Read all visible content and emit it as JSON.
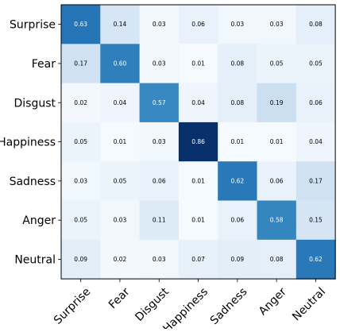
{
  "chart_data": {
    "type": "heatmap",
    "title": "",
    "xlabel": "",
    "ylabel": "",
    "colormap": "Blues",
    "grid": false,
    "legend": "none",
    "color_range": [
      0,
      0.86
    ],
    "rows": [
      "Surprise",
      "Fear",
      "Disgust",
      "Happiness",
      "Sadness",
      "Anger",
      "Neutral"
    ],
    "columns": [
      "Surprise",
      "Fear",
      "Disgust",
      "Happiness",
      "Sadness",
      "Anger",
      "Neutral"
    ],
    "values": [
      [
        0.63,
        0.14,
        0.03,
        0.06,
        0.03,
        0.03,
        0.08
      ],
      [
        0.17,
        0.6,
        0.03,
        0.01,
        0.08,
        0.05,
        0.05
      ],
      [
        0.02,
        0.04,
        0.57,
        0.04,
        0.08,
        0.19,
        0.06
      ],
      [
        0.05,
        0.01,
        0.03,
        0.86,
        0.01,
        0.01,
        0.04
      ],
      [
        0.03,
        0.05,
        0.06,
        0.01,
        0.62,
        0.06,
        0.17
      ],
      [
        0.05,
        0.03,
        0.11,
        0.01,
        0.06,
        0.58,
        0.15
      ],
      [
        0.09,
        0.02,
        0.03,
        0.07,
        0.09,
        0.08,
        0.62
      ]
    ]
  }
}
